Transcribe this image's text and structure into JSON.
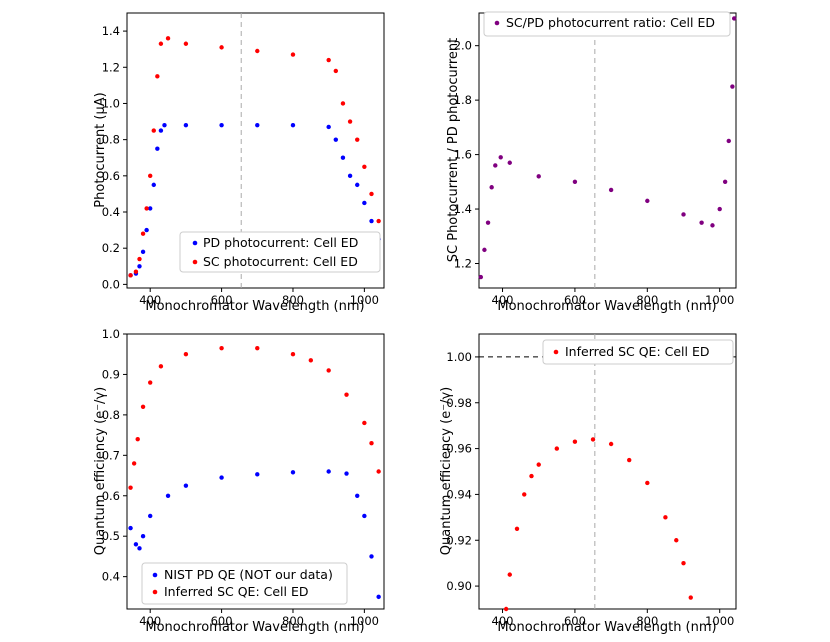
{
  "chart_data": [
    {
      "type": "scatter",
      "id": "tl",
      "xlabel": "Monochromator Wavelength (nm)",
      "ylabel": "Photocurrent (μA)",
      "xlim": [
        335,
        1055
      ],
      "ylim": [
        -0.02,
        1.5
      ],
      "xticks": [
        400,
        600,
        800,
        1000
      ],
      "xtick_labels": [
        "400",
        "600",
        "800",
        "1000"
      ],
      "yticks": [
        0.0,
        0.2,
        0.4,
        0.6,
        0.8,
        1.0,
        1.2,
        1.4
      ],
      "ytick_labels": [
        "0.0",
        "0.2",
        "0.4",
        "0.6",
        "0.8",
        "1.0",
        "1.2",
        "1.4"
      ],
      "vline": 655,
      "legend_position": "lower-right",
      "series": [
        {
          "name": "PD photocurrent: Cell ED",
          "color": "#0000ff",
          "points": [
            [
              345,
              0.05
            ],
            [
              360,
              0.06
            ],
            [
              370,
              0.1
            ],
            [
              380,
              0.18
            ],
            [
              390,
              0.3
            ],
            [
              400,
              0.42
            ],
            [
              410,
              0.55
            ],
            [
              420,
              0.75
            ],
            [
              430,
              0.85
            ],
            [
              440,
              0.88
            ],
            [
              500,
              0.88
            ],
            [
              600,
              0.88
            ],
            [
              700,
              0.88
            ],
            [
              800,
              0.88
            ],
            [
              900,
              0.87
            ],
            [
              920,
              0.8
            ],
            [
              940,
              0.7
            ],
            [
              960,
              0.6
            ],
            [
              980,
              0.55
            ],
            [
              1000,
              0.45
            ],
            [
              1020,
              0.35
            ],
            [
              1040,
              0.25
            ]
          ]
        },
        {
          "name": "SC photocurrent: Cell ED",
          "color": "#ff0000",
          "points": [
            [
              345,
              0.05
            ],
            [
              360,
              0.07
            ],
            [
              370,
              0.14
            ],
            [
              380,
              0.28
            ],
            [
              390,
              0.42
            ],
            [
              400,
              0.6
            ],
            [
              410,
              0.85
            ],
            [
              420,
              1.15
            ],
            [
              430,
              1.33
            ],
            [
              450,
              1.36
            ],
            [
              500,
              1.33
            ],
            [
              600,
              1.31
            ],
            [
              700,
              1.29
            ],
            [
              800,
              1.27
            ],
            [
              900,
              1.24
            ],
            [
              920,
              1.18
            ],
            [
              940,
              1.0
            ],
            [
              960,
              0.9
            ],
            [
              980,
              0.8
            ],
            [
              1000,
              0.65
            ],
            [
              1020,
              0.5
            ],
            [
              1040,
              0.35
            ]
          ]
        }
      ]
    },
    {
      "type": "scatter",
      "id": "tr",
      "xlabel": "Monochromator Wavelength (nm)",
      "ylabel": "SC Photocurrent / PD photocurrent",
      "xlim": [
        335,
        1045
      ],
      "ylim": [
        1.11,
        2.12
      ],
      "xticks": [
        400,
        600,
        800,
        1000
      ],
      "xtick_labels": [
        "400",
        "600",
        "800",
        "1000"
      ],
      "yticks": [
        1.2,
        1.4,
        1.6,
        1.8,
        2.0
      ],
      "ytick_labels": [
        "1.2",
        "1.4",
        "1.6",
        "1.8",
        "2.0"
      ],
      "vline": 655,
      "legend_position": "top-right",
      "series": [
        {
          "name": "SC/PD photocurrent ratio: Cell ED",
          "color": "#800080",
          "points": [
            [
              340,
              1.15
            ],
            [
              350,
              1.25
            ],
            [
              360,
              1.35
            ],
            [
              370,
              1.48
            ],
            [
              380,
              1.56
            ],
            [
              395,
              1.59
            ],
            [
              420,
              1.57
            ],
            [
              500,
              1.52
            ],
            [
              600,
              1.5
            ],
            [
              700,
              1.47
            ],
            [
              800,
              1.43
            ],
            [
              900,
              1.38
            ],
            [
              950,
              1.35
            ],
            [
              980,
              1.34
            ],
            [
              1000,
              1.4
            ],
            [
              1015,
              1.5
            ],
            [
              1025,
              1.65
            ],
            [
              1035,
              1.85
            ],
            [
              1040,
              2.1
            ]
          ]
        }
      ]
    },
    {
      "type": "scatter",
      "id": "bl",
      "xlabel": "Monochromator Wavelength (nm)",
      "ylabel": "Quantum efficiency (e⁻/γ)",
      "xlim": [
        335,
        1055
      ],
      "ylim": [
        0.32,
        1.0
      ],
      "xticks": [
        400,
        600,
        800,
        1000
      ],
      "xtick_labels": [
        "400",
        "600",
        "800",
        "1000"
      ],
      "yticks": [
        0.4,
        0.5,
        0.6,
        0.7,
        0.8,
        0.9,
        1.0
      ],
      "ytick_labels": [
        "0.4",
        "0.5",
        "0.6",
        "0.7",
        "0.8",
        "0.9",
        "1.0"
      ],
      "legend_position": "lower-left",
      "series": [
        {
          "name": "NIST PD QE (NOT our data)",
          "color": "#0000ff",
          "points": [
            [
              345,
              0.52
            ],
            [
              360,
              0.48
            ],
            [
              370,
              0.47
            ],
            [
              380,
              0.5
            ],
            [
              400,
              0.55
            ],
            [
              450,
              0.6
            ],
            [
              500,
              0.625
            ],
            [
              600,
              0.645
            ],
            [
              700,
              0.653
            ],
            [
              800,
              0.658
            ],
            [
              900,
              0.66
            ],
            [
              950,
              0.655
            ],
            [
              980,
              0.6
            ],
            [
              1000,
              0.55
            ],
            [
              1020,
              0.45
            ],
            [
              1040,
              0.35
            ]
          ]
        },
        {
          "name": "Inferred SC QE: Cell ED",
          "color": "#ff0000",
          "points": [
            [
              345,
              0.62
            ],
            [
              355,
              0.68
            ],
            [
              365,
              0.74
            ],
            [
              380,
              0.82
            ],
            [
              400,
              0.88
            ],
            [
              430,
              0.92
            ],
            [
              500,
              0.95
            ],
            [
              600,
              0.965
            ],
            [
              700,
              0.965
            ],
            [
              800,
              0.95
            ],
            [
              850,
              0.935
            ],
            [
              900,
              0.91
            ],
            [
              950,
              0.85
            ],
            [
              1000,
              0.78
            ],
            [
              1020,
              0.73
            ],
            [
              1040,
              0.66
            ]
          ]
        }
      ]
    },
    {
      "type": "scatter",
      "id": "br",
      "xlabel": "Monochromator Wavelength (nm)",
      "ylabel": "Quantum efficiency (e⁻/γ)",
      "xlim": [
        335,
        1045
      ],
      "ylim": [
        0.89,
        1.01
      ],
      "xticks": [
        400,
        600,
        800,
        1000
      ],
      "xtick_labels": [
        "400",
        "600",
        "800",
        "1000"
      ],
      "yticks": [
        0.9,
        0.92,
        0.94,
        0.96,
        0.98,
        1.0
      ],
      "ytick_labels": [
        "0.90",
        "0.92",
        "0.94",
        "0.96",
        "0.98",
        "1.00"
      ],
      "hline": 1.0,
      "vline": 655,
      "legend_position": "top-right",
      "series": [
        {
          "name": "Inferred SC QE: Cell ED",
          "color": "#ff0000",
          "points": [
            [
              410,
              0.89
            ],
            [
              420,
              0.905
            ],
            [
              440,
              0.925
            ],
            [
              460,
              0.94
            ],
            [
              480,
              0.948
            ],
            [
              500,
              0.953
            ],
            [
              550,
              0.96
            ],
            [
              600,
              0.963
            ],
            [
              650,
              0.964
            ],
            [
              700,
              0.962
            ],
            [
              750,
              0.955
            ],
            [
              800,
              0.945
            ],
            [
              850,
              0.93
            ],
            [
              880,
              0.92
            ],
            [
              900,
              0.91
            ],
            [
              920,
              0.895
            ]
          ]
        }
      ]
    }
  ]
}
